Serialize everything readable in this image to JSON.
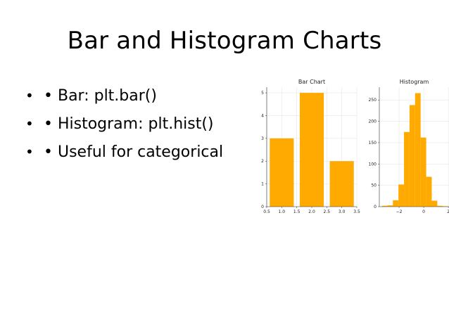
{
  "slide": {
    "title": "Bar and Histogram Charts",
    "bullets": [
      {
        "marker": "•",
        "text": "• Bar: plt.bar()"
      },
      {
        "marker": "•",
        "text": "• Histogram: plt.hist()"
      },
      {
        "marker": "•",
        "text": "• Useful for categorical"
      }
    ]
  },
  "chart_data": [
    {
      "type": "bar",
      "title": "Bar Chart",
      "x": [
        1,
        2,
        3
      ],
      "values": [
        3,
        5,
        2
      ],
      "bar_width": 0.8,
      "xlim": [
        0.5,
        3.5
      ],
      "ylim": [
        0,
        5.25
      ],
      "xticks": [
        0.5,
        1.0,
        1.5,
        2.0,
        2.5,
        3.0,
        3.5
      ],
      "xtick_labels": [
        "0.5",
        "1.0",
        "1.5",
        "2.0",
        "2.5",
        "3.0",
        "3.5"
      ],
      "yticks": [
        0,
        1,
        2,
        3,
        4,
        5
      ],
      "ytick_labels": [
        "0",
        "1",
        "2",
        "3",
        "4",
        "5"
      ],
      "grid": true,
      "color": "#FFAA00"
    },
    {
      "type": "bar",
      "title": "Histogram",
      "bin_edges": [
        -3.4,
        -2.95,
        -2.5,
        -2.05,
        -1.6,
        -1.15,
        -0.7,
        -0.25,
        0.2,
        0.65,
        1.1,
        1.55,
        2.0,
        2.45
      ],
      "values": [
        2,
        3,
        15,
        52,
        175,
        238,
        266,
        162,
        70,
        14,
        2,
        1,
        0
      ],
      "xlim": [
        -3.6,
        2.05
      ],
      "ylim": [
        0,
        280
      ],
      "xticks": [
        -2,
        0,
        2
      ],
      "xtick_labels": [
        "−2",
        "0",
        "2"
      ],
      "yticks": [
        0,
        50,
        100,
        150,
        200,
        250
      ],
      "ytick_labels": [
        "0",
        "50",
        "100",
        "150",
        "200",
        "250"
      ],
      "grid": true,
      "color": "#FFAA00"
    }
  ]
}
